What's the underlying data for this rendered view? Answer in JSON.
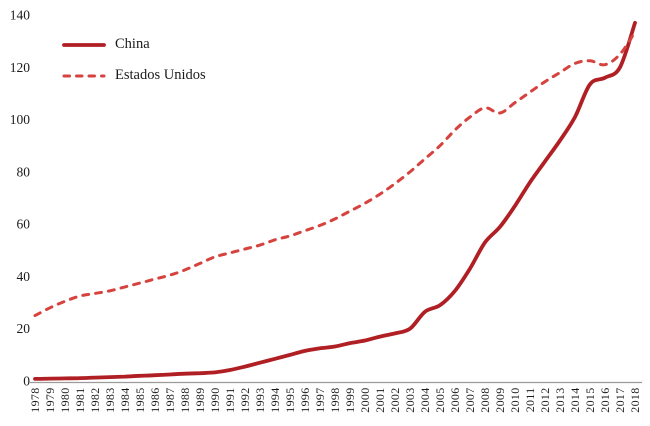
{
  "page": {
    "background": "#ffffff",
    "text_color": "#1b1b1b",
    "axis_line_color": "#9b9b9b"
  },
  "legend": {
    "items": [
      {
        "label": "China"
      },
      {
        "label": "Estados Unidos"
      }
    ]
  },
  "chart_data": {
    "type": "line",
    "title": "",
    "xlabel": "",
    "ylabel": "",
    "grid": false,
    "legend_position": "top-left-inside",
    "ylim": [
      0,
      140
    ],
    "yticks": [
      0,
      20,
      40,
      60,
      80,
      100,
      120,
      140
    ],
    "x": [
      1978,
      1979,
      1980,
      1981,
      1982,
      1983,
      1984,
      1985,
      1986,
      1987,
      1988,
      1989,
      1990,
      1991,
      1992,
      1993,
      1994,
      1995,
      1996,
      1997,
      1998,
      1999,
      2000,
      2001,
      2002,
      2003,
      2004,
      2005,
      2006,
      2007,
      2008,
      2009,
      2010,
      2011,
      2012,
      2013,
      2014,
      2015,
      2016,
      2017,
      2018
    ],
    "series": [
      {
        "name": "China",
        "style": "solid",
        "color": "#B01F24",
        "line_width": 3.8,
        "values": [
          0.8,
          0.9,
          1.0,
          1.1,
          1.3,
          1.5,
          1.7,
          2.0,
          2.2,
          2.5,
          2.8,
          3.0,
          3.3,
          4.2,
          5.5,
          7.0,
          8.5,
          10.0,
          11.5,
          12.5,
          13.2,
          14.5,
          15.5,
          17.0,
          18.2,
          20.0,
          26.5,
          29.0,
          34.5,
          43.0,
          53.0,
          59.0,
          67.0,
          76.0,
          84.0,
          92.0,
          101.0,
          113.5,
          116.0,
          120.0,
          137.0
        ]
      },
      {
        "name": "Estados Unidos",
        "style": "dashed",
        "color": "#D6423E",
        "line_width": 3.0,
        "dash": "6 7",
        "values": [
          25.0,
          28.0,
          30.5,
          32.5,
          33.5,
          34.5,
          36.0,
          37.5,
          39.0,
          40.5,
          42.5,
          45.0,
          47.5,
          49.0,
          50.5,
          52.0,
          54.0,
          55.5,
          57.5,
          59.5,
          62.0,
          65.0,
          68.0,
          71.5,
          75.5,
          80.0,
          85.0,
          90.0,
          96.0,
          101.0,
          104.5,
          102.5,
          106.5,
          110.5,
          114.5,
          118.0,
          121.5,
          122.5,
          121.0,
          125.0,
          133.5
        ]
      }
    ]
  }
}
